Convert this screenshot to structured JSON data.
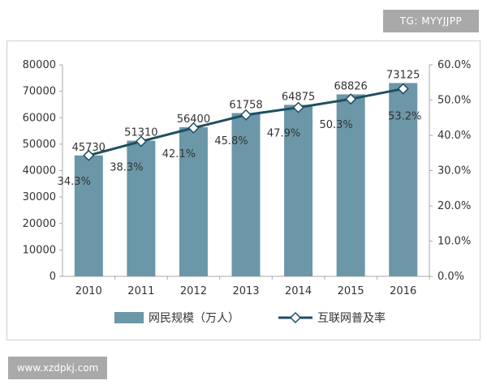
{
  "watermarks": {
    "top_right": "TG: MYYJJPP",
    "bottom_left": "www.xzdpkj.com"
  },
  "colors": {
    "bar": "#6b97a8",
    "line": "#1e4f63",
    "marker_fill": "#ffffff",
    "axis": "#aaaaaa",
    "text": "#333333"
  },
  "chart_data": {
    "type": "bar",
    "categories": [
      "2010",
      "2011",
      "2012",
      "2013",
      "2014",
      "2015",
      "2016"
    ],
    "series": [
      {
        "name": "网民规模（万人）",
        "type": "bar",
        "axis": "left",
        "values": [
          45730,
          51310,
          56400,
          61758,
          64875,
          68826,
          73125
        ],
        "labels": [
          "45730",
          "51310",
          "56400",
          "61758",
          "64875",
          "68826",
          "73125"
        ]
      },
      {
        "name": "互联网普及率",
        "type": "line",
        "axis": "right",
        "values": [
          34.3,
          38.3,
          42.1,
          45.8,
          47.9,
          50.3,
          53.2
        ],
        "labels": [
          "34.3%",
          "38.3%",
          "42.1%",
          "45.8%",
          "47.9%",
          "50.3%",
          "53.2%"
        ]
      }
    ],
    "y_left": {
      "ylim": [
        0,
        80000
      ],
      "ticks": [
        "0",
        "10000",
        "20000",
        "30000",
        "40000",
        "50000",
        "60000",
        "70000",
        "80000"
      ]
    },
    "y_right": {
      "ylim": [
        0,
        60
      ],
      "ticks": [
        "0.0%",
        "10.0%",
        "20.0%",
        "30.0%",
        "40.0%",
        "50.0%",
        "60.0%"
      ]
    },
    "grid": false,
    "legend": "bottom"
  }
}
